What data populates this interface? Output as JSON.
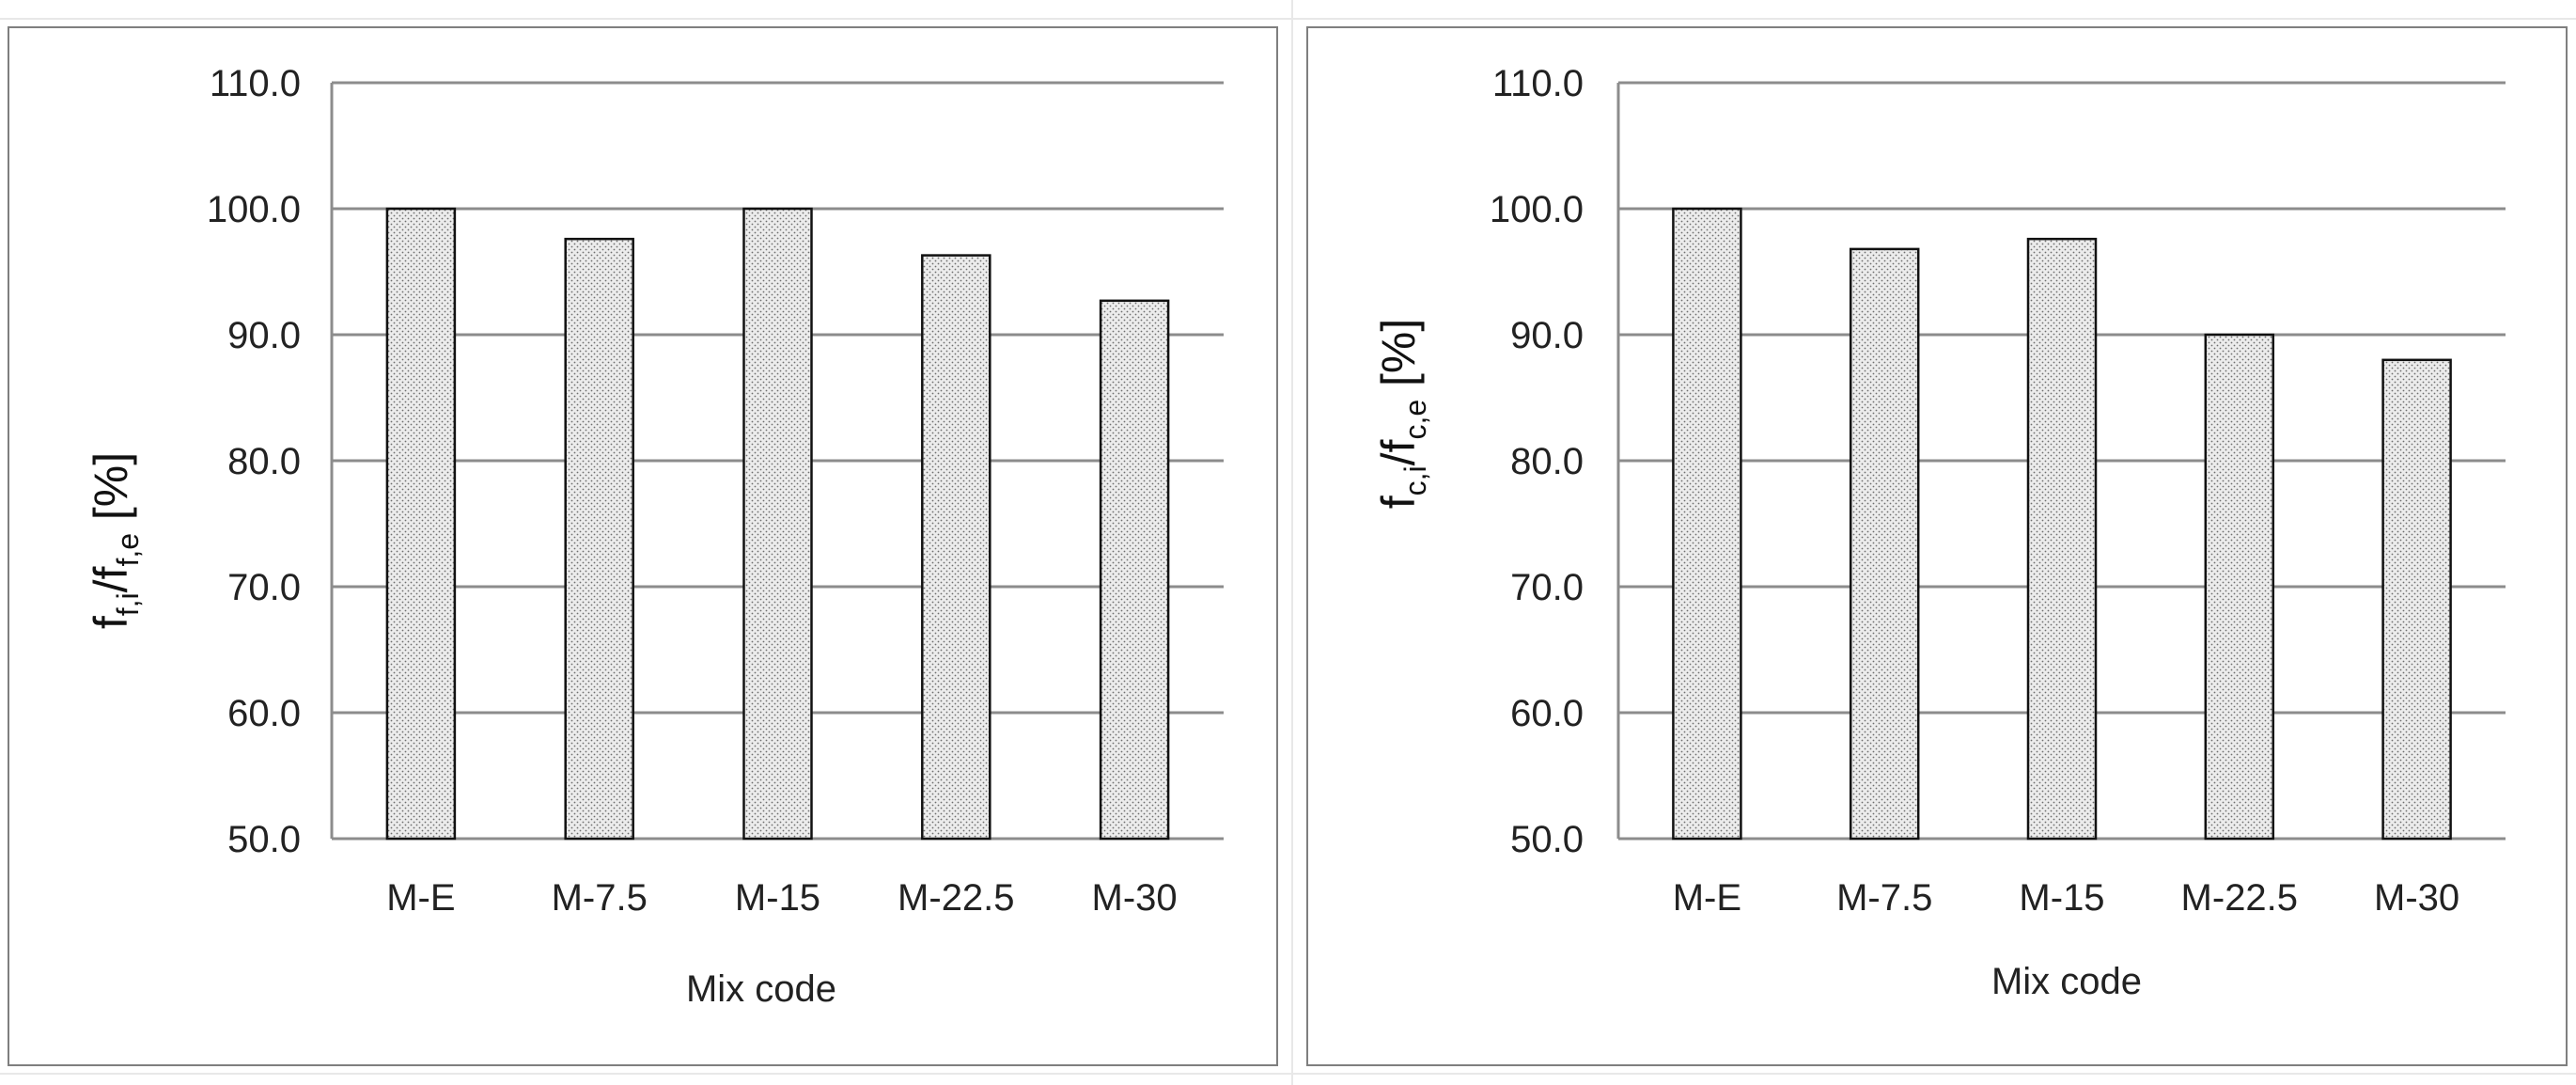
{
  "chart_data": [
    {
      "type": "bar",
      "categories": [
        "M-E",
        "M-7.5",
        "M-15",
        "M-22.5",
        "M-30"
      ],
      "values": [
        100.0,
        97.6,
        100.0,
        96.3,
        92.7
      ],
      "ylim": [
        50.0,
        110.0
      ],
      "yticks": [
        "50.0",
        "60.0",
        "70.0",
        "80.0",
        "90.0",
        "100.0",
        "110.0"
      ],
      "xlabel": "Mix code",
      "ylabel": {
        "base1": "f",
        "sub1": "f,i",
        "slash": "/",
        "base2": "f",
        "sub2": "f,e",
        "unit": " [%]"
      },
      "grid": true,
      "bar_fill": "#ececec",
      "bar_stroke": "#111111",
      "grid_color": "#8c8c8c"
    },
    {
      "type": "bar",
      "categories": [
        "M-E",
        "M-7.5",
        "M-15",
        "M-22.5",
        "M-30"
      ],
      "values": [
        100.0,
        96.8,
        97.6,
        90.0,
        88.0
      ],
      "ylim": [
        50.0,
        110.0
      ],
      "yticks": [
        "50.0",
        "60.0",
        "70.0",
        "80.0",
        "90.0",
        "100.0",
        "110.0"
      ],
      "xlabel": "Mix code",
      "ylabel": {
        "base1": "f",
        "sub1": "c,i",
        "slash": "/",
        "base2": "f",
        "sub2": "c,e",
        "unit": " [%]"
      },
      "grid": true,
      "bar_fill": "#ececec",
      "bar_stroke": "#111111",
      "grid_color": "#8c8c8c"
    }
  ]
}
